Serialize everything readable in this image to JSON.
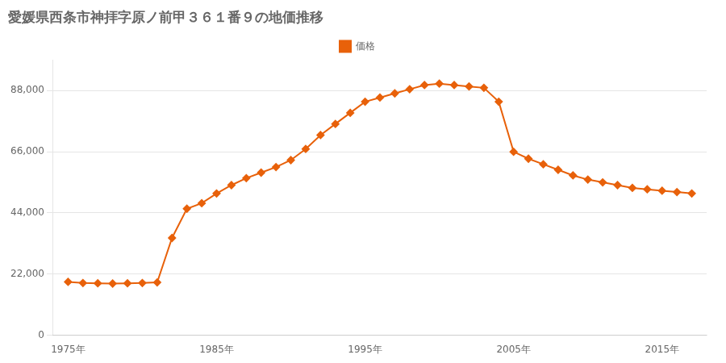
{
  "chart_data": {
    "type": "line",
    "title": "愛媛県西条市神拝字原ノ前甲３６１番９の地価推移",
    "x": [
      1975,
      1976,
      1977,
      1978,
      1979,
      1980,
      1981,
      1982,
      1983,
      1984,
      1985,
      1986,
      1987,
      1988,
      1989,
      1990,
      1991,
      1992,
      1993,
      1994,
      1995,
      1996,
      1997,
      1998,
      1999,
      2000,
      2001,
      2002,
      2003,
      2004,
      2005,
      2006,
      2007,
      2008,
      2009,
      2010,
      2011,
      2012,
      2013,
      2014,
      2015,
      2016,
      2017
    ],
    "series": [
      {
        "name": "価格",
        "color": "#E8610A",
        "marker": "diamond",
        "values": [
          19200,
          18800,
          18700,
          18600,
          18700,
          18800,
          19000,
          35000,
          45500,
          47500,
          51000,
          54000,
          56500,
          58500,
          60500,
          63000,
          67000,
          72000,
          76000,
          80000,
          84000,
          85500,
          87000,
          88500,
          90000,
          90500,
          90000,
          89500,
          89000,
          84000,
          66000,
          63500,
          61500,
          59500,
          57500,
          56000,
          55000,
          54000,
          53000,
          52500,
          52000,
          51500,
          51000
        ]
      }
    ],
    "xlim": [
      1974,
      2018
    ],
    "ylim": [
      0,
      99000
    ],
    "xticks": [
      {
        "value": 1975,
        "label": "1975年"
      },
      {
        "value": 1985,
        "label": "1985年"
      },
      {
        "value": 1995,
        "label": "1995年"
      },
      {
        "value": 2005,
        "label": "2005年"
      },
      {
        "value": 2015,
        "label": "2015年"
      }
    ],
    "yticks": [
      0,
      {
        "value": 22000,
        "label": "22,000"
      },
      {
        "value": 44000,
        "label": "44,000"
      },
      {
        "value": 66000,
        "label": "66,000"
      },
      {
        "value": 88000,
        "label": "88,000"
      }
    ],
    "grid": "y",
    "legend": "top"
  }
}
